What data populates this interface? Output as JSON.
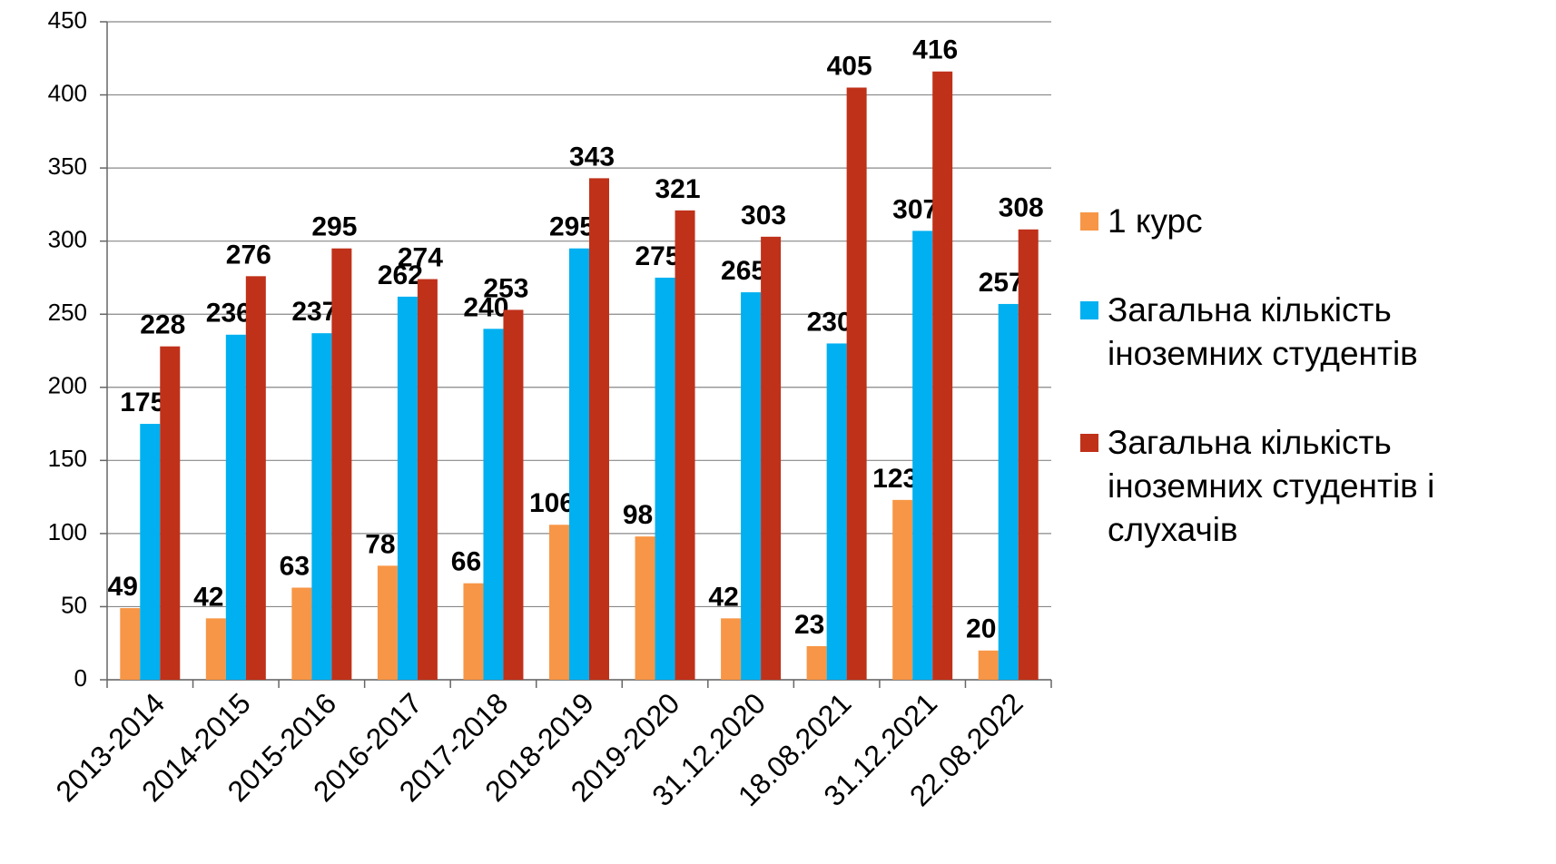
{
  "chart_data": {
    "type": "bar",
    "categories": [
      "2013-2014",
      "2014-2015",
      "2015-2016",
      "2016-2017",
      "2017-2018",
      "2018-2019",
      "2019-2020",
      "31.12.2020",
      "18.08.2021",
      "31.12.2021",
      "22.08.2022"
    ],
    "series": [
      {
        "name": "1 курс",
        "color": "#f79646",
        "values": [
          49,
          42,
          63,
          78,
          66,
          106,
          98,
          42,
          23,
          123,
          20
        ]
      },
      {
        "name": "Загальна кількість іноземних студентів",
        "color": "#00b0f0",
        "values": [
          175,
          236,
          237,
          262,
          240,
          295,
          275,
          265,
          230,
          307,
          257
        ]
      },
      {
        "name": "Загальна кількість іноземних студентів і слухачів",
        "color": "#c0311a",
        "values": [
          228,
          276,
          295,
          274,
          253,
          343,
          321,
          303,
          405,
          416,
          308
        ]
      }
    ],
    "ylim": [
      0,
      450
    ],
    "yticks": [
      0,
      50,
      100,
      150,
      200,
      250,
      300,
      350,
      400,
      450
    ],
    "grid": true,
    "legend": "right"
  }
}
